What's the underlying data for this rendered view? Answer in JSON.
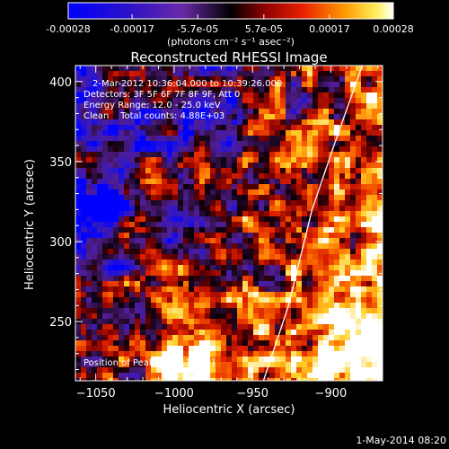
{
  "colorbar": {
    "min": -0.00028,
    "max": 0.00028,
    "tick_labels": [
      "-0.00028",
      "-0.00017",
      "-5.7e-05",
      "5.7e-05",
      "0.00017",
      "0.00028"
    ],
    "tick_values": [
      -0.00028,
      -0.00017,
      -5.7e-05,
      5.7e-05,
      0.00017,
      0.00028
    ],
    "unit_label": "(photons cm⁻² s⁻¹ asec⁻²)"
  },
  "chart_data": {
    "type": "heatmap",
    "title": "Reconstructed RHESSI Image",
    "xlabel": "Heliocentric X (arcsec)",
    "ylabel": "Heliocentric Y (arcsec)",
    "xlim": [
      -1063,
      -867
    ],
    "ylim": [
      213,
      410
    ],
    "xticks": [
      -1050,
      -1000,
      -950,
      -900
    ],
    "yticks": [
      250,
      300,
      350,
      400
    ],
    "xtick_labels": [
      "−1050",
      "−1000",
      "−950",
      "−900"
    ],
    "ytick_labels": [
      "250",
      "300",
      "350",
      "400"
    ],
    "colormap": "blue-purple-black-red-orange-yellow-white",
    "limb_line": [
      [
        -943,
        213
      ],
      [
        -927,
        260
      ],
      [
        -912,
        320
      ],
      [
        -898,
        360
      ],
      [
        -880,
        410
      ]
    ],
    "annotations": {
      "time": "2-Mar-2012 10:36:04.000 to 10:39:26.000",
      "detectors": "Detectors: 3F 5F 6F 7F 8F 9F, Att 0",
      "energy": "Energy Range: 12.0 - 25.0 keV",
      "clean": "Clean    Total counts: 4.88E+03",
      "peak": "Position of Peak = [-911,393]"
    }
  },
  "footer": {
    "timestamp": "1-May-2014 08:20"
  }
}
